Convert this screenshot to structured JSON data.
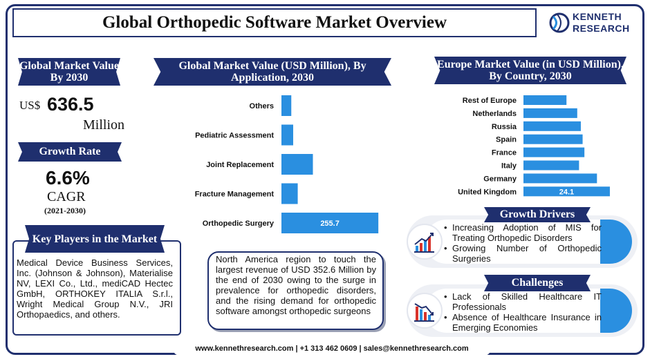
{
  "title": "Global Orthopedic Software Market Overview",
  "logo": {
    "line1": "KENNETH",
    "line2": "RESEARCH"
  },
  "market_value": {
    "heading": "Global Market Value By 2030",
    "currency": "US$",
    "value": "636.5",
    "unit": "Million"
  },
  "growth_rate": {
    "heading": "Growth Rate",
    "value": "6.6%",
    "label": "CAGR",
    "period": "(2021-2030)"
  },
  "key_players": {
    "heading": "Key Players in the Market",
    "text": "Medical Device Business Services, Inc. (Johnson & Johnson), Materialise NV, LEXI Co., Ltd., mediCAD Hectec GmbH, ORTHOKEY ITALIA S.r.l., Wright Medical Group N.V., JRI Orthopaedics, and others."
  },
  "north_america_note": "North America region to touch the largest revenue of USD 352.6 Million by the end of 2030 owing to the surge in prevalence for orthopedic disorders, and the rising demand for orthopedic software amongst orthopedic surgeons",
  "growth_drivers": {
    "heading": "Growth Drivers",
    "items": [
      "Increasing Adoption of MIS for Treating Orthopedic Disorders",
      "Growing Number of Orthopedic Surgeries"
    ]
  },
  "challenges": {
    "heading": "Challenges",
    "items": [
      "Lack of Skilled Healthcare IT Professionals",
      "Absence of Healthcare Insurance in Emerging Economies"
    ]
  },
  "footer": "www.kennethresearch.com | +1 313 462 0609 | sales@kennethresearch.com",
  "colors": {
    "navy": "#1f2f6e",
    "bar": "#2a8fe0"
  },
  "chart_data": [
    {
      "type": "bar",
      "orientation": "horizontal",
      "title": "Global Market Value (USD Million), By Application, 2030",
      "categories": [
        "Others",
        "Pediatric Assessment",
        "Joint Replacement",
        "Fracture Management",
        "Orthopedic Surgery"
      ],
      "values": [
        26,
        31,
        83,
        43,
        255.7
      ],
      "data_labels": [
        "",
        "",
        "",
        "",
        "255.7"
      ],
      "xlim": [
        0,
        270
      ]
    },
    {
      "type": "bar",
      "orientation": "horizontal",
      "title": "Europe Market Value (in USD Million), By Country, 2030",
      "categories": [
        "Rest  of Europe",
        "Netherlands",
        "Russia",
        "Spain",
        "France",
        "Italy",
        "Germany",
        "United Kingdom"
      ],
      "values": [
        12,
        15,
        16,
        16.5,
        17,
        15.5,
        20.5,
        24.1
      ],
      "data_labels": [
        "",
        "",
        "",
        "",
        "",
        "",
        "",
        "24.1"
      ],
      "xlim": [
        0,
        27
      ]
    }
  ]
}
